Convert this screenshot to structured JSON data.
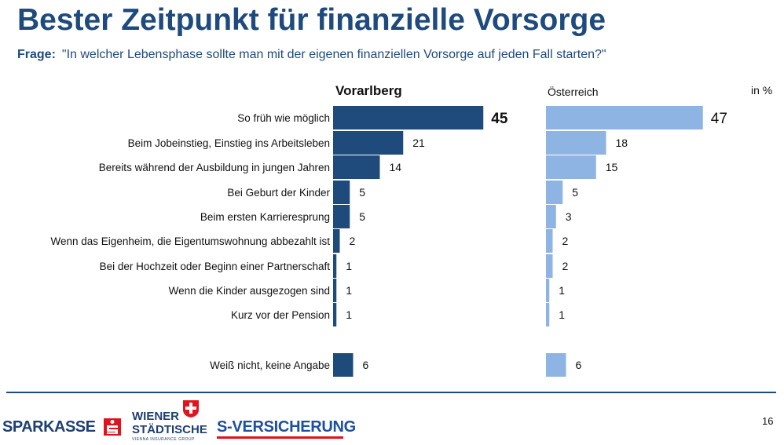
{
  "header": {
    "title": "Bester Zeitpunkt für finanzielle Vorsorge",
    "question_label": "Frage:",
    "question_text": "\"In welcher Lebensphase sollte man mit der eigenen finanziellen Vorsorge auf jeden Fall starten?\""
  },
  "chart_data": {
    "type": "bar",
    "orientation": "horizontal",
    "unit": "in %",
    "categories": [
      "So früh wie möglich",
      "Beim Jobeinstieg, Einstieg ins Arbeitsleben",
      "Bereits während der Ausbildung in jungen Jahren",
      "Bei Geburt der Kinder",
      "Beim ersten Karrieresprung",
      "Wenn das Eigenheim, die Eigentumswohnung abbezahlt ist",
      "Bei der Hochzeit oder Beginn einer Partnerschaft",
      "Wenn die Kinder ausgezogen sind",
      "Kurz vor der Pension",
      "Weiß nicht, keine Angabe"
    ],
    "series": [
      {
        "name": "Vorarlberg",
        "color": "#1f4a7c",
        "values": [
          45,
          21,
          14,
          5,
          5,
          2,
          1,
          1,
          1,
          6
        ]
      },
      {
        "name": "Österreich",
        "color": "#8db4e2",
        "values": [
          47,
          18,
          15,
          5,
          3,
          2,
          2,
          1,
          1,
          6
        ]
      }
    ]
  },
  "footer": {
    "logo_sparkasse": "SPARKASSE",
    "logo_wiener_line1": "WIENER",
    "logo_wiener_line2": "STÄDTISCHE",
    "logo_wiener_tagline": "VIENNA INSURANCE GROUP",
    "logo_sversicherung": "S-VERSICHERUNG",
    "page_number": "16"
  }
}
